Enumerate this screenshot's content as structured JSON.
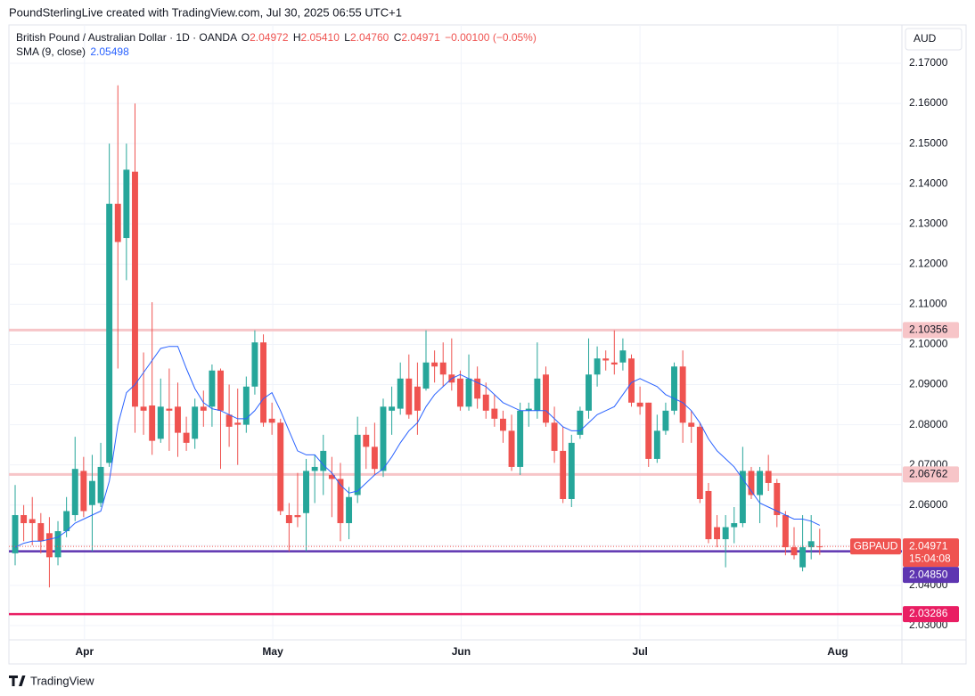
{
  "header": "PoundSterlingLive created with TradingView.com, Jul 30, 2025 06:55 UTC+1",
  "footer": "TradingView",
  "chart_data": {
    "type": "candlestick",
    "legend": {
      "symbol": "British Pound / Australian Dollar · 1D · OANDA",
      "o_label": "O",
      "o": "2.04972",
      "h_label": "H",
      "h": "2.05410",
      "l_label": "L",
      "l": "2.04760",
      "c_label": "C",
      "c": "2.04971",
      "change": "−0.00100 (−0.05%)",
      "sma_name": "SMA (9, close)",
      "sma_value": "2.05498"
    },
    "currency": "AUD",
    "up_color": "#26a69a",
    "down_color": "#ef5350",
    "sma_color": "#2962ff",
    "open": [
      2.048,
      2.0575,
      2.0565,
      2.0555,
      2.053,
      2.047,
      2.0535,
      2.0575,
      2.0685,
      2.06,
      2.0605,
      2.0705,
      2.135,
      2.1265,
      2.143,
      2.0845,
      2.0848,
      2.0765,
      2.084,
      2.0845,
      2.078,
      2.0765,
      2.0845,
      2.0845,
      2.0935,
      2.0825,
      2.0805,
      2.08,
      2.0895,
      2.1005,
      2.0815,
      2.0805,
      2.0575,
      2.0575,
      2.058,
      2.0685,
      2.0685,
      2.0675,
      2.0665,
      2.0555,
      2.0625,
      2.0775,
      2.0745,
      2.0685,
      2.0835,
      2.084,
      2.0915,
      2.0895,
      2.089,
      2.0955,
      2.0955,
      2.0925,
      2.0915,
      2.0845,
      2.0915,
      2.0875,
      2.084,
      2.0815,
      2.0785,
      2.0695,
      2.0835,
      2.0835,
      2.0925,
      2.0805,
      2.0735,
      2.0615,
      2.0775,
      2.0835,
      2.0925,
      2.0965,
      2.0955,
      2.0955,
      2.0965,
      2.0855,
      2.0855,
      2.0715,
      2.0785,
      2.0835,
      2.0945,
      2.0805,
      2.0795,
      2.0635,
      2.0545,
      2.0515,
      2.0545,
      2.0555,
      2.0685,
      2.0625,
      2.0685,
      2.0655,
      2.0575,
      2.0495,
      2.0445,
      2.0495,
      2.04972
    ],
    "high": [
      2.065,
      2.06,
      2.062,
      2.058,
      2.057,
      2.056,
      2.062,
      2.077,
      2.072,
      2.0725,
      2.0755,
      2.15,
      2.1645,
      2.15,
      2.16,
      2.098,
      2.1105,
      2.0915,
      2.094,
      2.0905,
      2.082,
      2.0865,
      2.0885,
      2.095,
      2.094,
      2.09,
      2.089,
      2.092,
      2.1035,
      2.1025,
      2.0855,
      2.0815,
      2.0605,
      2.068,
      2.0715,
      2.0725,
      2.0775,
      2.072,
      2.0705,
      2.0645,
      2.082,
      2.0795,
      2.0805,
      2.0865,
      2.0895,
      2.0955,
      2.0975,
      2.0955,
      2.1035,
      2.0985,
      2.1005,
      2.1015,
      2.0935,
      2.0975,
      2.0945,
      2.0905,
      2.0875,
      2.0835,
      2.0825,
      2.0855,
      2.0855,
      2.1005,
      2.0945,
      2.0845,
      2.0795,
      2.0775,
      2.0845,
      2.1015,
      2.0995,
      2.0985,
      2.1035,
      2.1015,
      2.0975,
      2.0895,
      2.0855,
      2.0825,
      2.0855,
      2.0955,
      2.0985,
      2.0835,
      2.0805,
      2.0655,
      2.0575,
      2.0575,
      2.0595,
      2.0745,
      2.0695,
      2.0695,
      2.0725,
      2.0665,
      2.0585,
      2.0545,
      2.0575,
      2.0575,
      2.0541
    ],
    "low": [
      2.045,
      2.051,
      2.05,
      2.048,
      2.0395,
      2.045,
      2.052,
      2.056,
      2.057,
      2.0485,
      2.0595,
      2.0695,
      2.094,
      2.116,
      2.078,
      2.0775,
      2.0725,
      2.0755,
      2.0735,
      2.072,
      2.0735,
      2.074,
      2.0795,
      2.0795,
      2.069,
      2.0745,
      2.07,
      2.078,
      2.0875,
      2.0795,
      2.0775,
      2.0575,
      2.0485,
      2.0545,
      2.0485,
      2.0605,
      2.0625,
      2.057,
      2.051,
      2.0515,
      2.0605,
      2.069,
      2.0675,
      2.067,
      2.0775,
      2.0825,
      2.0815,
      2.0775,
      2.0885,
      2.0905,
      2.0895,
      2.0885,
      2.0835,
      2.0835,
      2.084,
      2.0815,
      2.0795,
      2.0755,
      2.0685,
      2.0675,
      2.0795,
      2.0815,
      2.0795,
      2.0705,
      2.0605,
      2.0595,
      2.0765,
      2.0815,
      2.0895,
      2.0935,
      2.0925,
      2.0935,
      2.0845,
      2.0825,
      2.0695,
      2.0705,
      2.0775,
      2.0825,
      2.0755,
      2.0755,
      2.0605,
      2.0505,
      2.0495,
      2.0445,
      2.0505,
      2.0545,
      2.0615,
      2.0555,
      2.0635,
      2.0545,
      2.0475,
      2.0465,
      2.0435,
      2.0465,
      2.0476
    ],
    "close": [
      2.0575,
      2.0555,
      2.0555,
      2.051,
      2.047,
      2.0535,
      2.0585,
      2.069,
      2.0585,
      2.066,
      2.0695,
      2.135,
      2.1255,
      2.1435,
      2.0845,
      2.0835,
      2.076,
      2.0845,
      2.0835,
      2.078,
      2.0755,
      2.0845,
      2.0835,
      2.0935,
      2.0835,
      2.0795,
      2.08,
      2.0895,
      2.1005,
      2.0805,
      2.0805,
      2.0585,
      2.0555,
      2.057,
      2.0685,
      2.0695,
      2.0735,
      2.0665,
      2.0555,
      2.062,
      2.0775,
      2.0745,
      2.069,
      2.0845,
      2.0845,
      2.0915,
      2.0825,
      2.0835,
      2.0955,
      2.0945,
      2.0925,
      2.0905,
      2.0845,
      2.0915,
      2.0865,
      2.0835,
      2.0815,
      2.0785,
      2.0695,
      2.0835,
      2.084,
      2.0915,
      2.0805,
      2.0735,
      2.0615,
      2.0755,
      2.0835,
      2.0925,
      2.0965,
      2.096,
      2.095,
      2.0985,
      2.0855,
      2.0845,
      2.0715,
      2.0785,
      2.0835,
      2.0945,
      2.0805,
      2.0795,
      2.0615,
      2.0515,
      2.0515,
      2.0545,
      2.0555,
      2.0685,
      2.0625,
      2.0685,
      2.0655,
      2.0575,
      2.0495,
      2.0475,
      2.0495,
      2.051,
      2.04971
    ],
    "sma": [
      2.0495,
      2.0505,
      2.051,
      2.051,
      2.0515,
      2.052,
      2.0535,
      2.0555,
      2.0565,
      2.0575,
      2.0585,
      2.066,
      2.08,
      2.088,
      2.09,
      2.093,
      2.096,
      2.099,
      2.0995,
      2.0995,
      2.094,
      2.089,
      2.0855,
      2.084,
      2.0835,
      2.0825,
      2.0815,
      2.0815,
      2.0835,
      2.0865,
      2.088,
      2.0835,
      2.0785,
      2.0735,
      2.0725,
      2.0725,
      2.07,
      2.068,
      2.065,
      2.063,
      2.0635,
      2.0655,
      2.0675,
      2.069,
      2.072,
      2.0755,
      2.0785,
      2.0805,
      2.0845,
      2.0875,
      2.0895,
      2.0915,
      2.0925,
      2.0915,
      2.0905,
      2.0895,
      2.0875,
      2.0855,
      2.0845,
      2.0835,
      2.0835,
      2.0835,
      2.0835,
      2.0815,
      2.0795,
      2.0785,
      2.0785,
      2.0805,
      2.0825,
      2.0835,
      2.0845,
      2.0875,
      2.0905,
      2.0915,
      2.0905,
      2.0895,
      2.0875,
      2.0865,
      2.0855,
      2.0835,
      2.0805,
      2.0765,
      2.0735,
      2.0715,
      2.0695,
      2.0665,
      2.0635,
      2.0605,
      2.0595,
      2.0585,
      2.0575,
      2.0565,
      2.0565,
      2.056,
      2.05498
    ],
    "xlim": [
      -0.73,
      103.6
    ],
    "xticks": [
      {
        "value": 8.1,
        "label": "Apr"
      },
      {
        "value": 30.1,
        "label": "May"
      },
      {
        "value": 52.1,
        "label": "Jun"
      },
      {
        "value": 73.0,
        "label": "Jul"
      },
      {
        "value": 96.1,
        "label": "Aug"
      }
    ],
    "ylim": [
      2.02644,
      2.17954
    ],
    "yticks": [
      {
        "value": 2.03,
        "label": "2.03000"
      },
      {
        "value": 2.04,
        "label": "2.04000"
      },
      {
        "value": 2.05,
        "label": "2.05000"
      },
      {
        "value": 2.06,
        "label": "2.06000"
      },
      {
        "value": 2.07,
        "label": "2.07000"
      },
      {
        "value": 2.08,
        "label": "2.08000"
      },
      {
        "value": 2.09,
        "label": "2.09000"
      },
      {
        "value": 2.1,
        "label": "2.10000"
      },
      {
        "value": 2.11,
        "label": "2.11000"
      },
      {
        "value": 2.12,
        "label": "2.12000"
      },
      {
        "value": 2.13,
        "label": "2.13000"
      },
      {
        "value": 2.14,
        "label": "2.14000"
      },
      {
        "value": 2.15,
        "label": "2.15000"
      },
      {
        "value": 2.16,
        "label": "2.16000"
      },
      {
        "value": 2.17,
        "label": "2.17000"
      }
    ],
    "grid": true,
    "levels": [
      {
        "value": 2.10356,
        "color": "#f7c5c8",
        "text_color": "#131722"
      },
      {
        "value": 2.06762,
        "color": "#f7c5c8",
        "text_color": "#131722"
      },
      {
        "value": 2.0485,
        "label": "2.04850",
        "color": "#5e35b1",
        "text_color": "#ffffff"
      },
      {
        "value": 2.03286,
        "color": "#e91e63",
        "text_color": "#ffffff"
      }
    ],
    "last": {
      "value": 2.04971,
      "symbol": "GBPAUD",
      "countdown": "15:04:08",
      "color": "#ef5350"
    }
  }
}
